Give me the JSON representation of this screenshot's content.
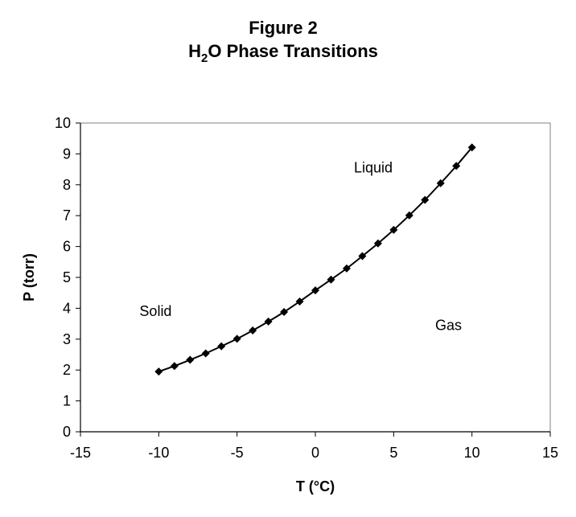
{
  "chart_data": {
    "type": "line",
    "title_line1": "Figure 2",
    "title_line2": {
      "prefix": "H",
      "subscript": "2",
      "suffix": "O Phase Transitions"
    },
    "xlabel": "T (°C)",
    "ylabel": "P (torr)",
    "xlim": [
      -15,
      15
    ],
    "ylim": [
      0,
      10
    ],
    "xticks": [
      "-15",
      "-10",
      "-5",
      "0",
      "5",
      "10",
      "15"
    ],
    "yticks": [
      "0",
      "1",
      "2",
      "3",
      "4",
      "5",
      "6",
      "7",
      "8",
      "9",
      "10"
    ],
    "grid": false,
    "marker": "diamond",
    "series": [
      {
        "x": [
          -10,
          -9,
          -8,
          -7,
          -6,
          -5,
          -4,
          -3,
          -2,
          -1,
          0,
          1,
          2,
          3,
          4,
          5,
          6,
          7,
          8,
          9,
          10
        ],
        "y": [
          1.95,
          2.13,
          2.33,
          2.54,
          2.77,
          3.01,
          3.28,
          3.57,
          3.88,
          4.22,
          4.58,
          4.93,
          5.29,
          5.69,
          6.1,
          6.54,
          7.01,
          7.51,
          8.05,
          8.61,
          9.21
        ]
      }
    ],
    "annotations": [
      {
        "text": "Liquid",
        "x": 3.7,
        "y": 8.4
      },
      {
        "text": "Solid",
        "x": -10.2,
        "y": 3.75
      },
      {
        "text": "Gas",
        "x": 8.5,
        "y": 3.3
      }
    ]
  }
}
